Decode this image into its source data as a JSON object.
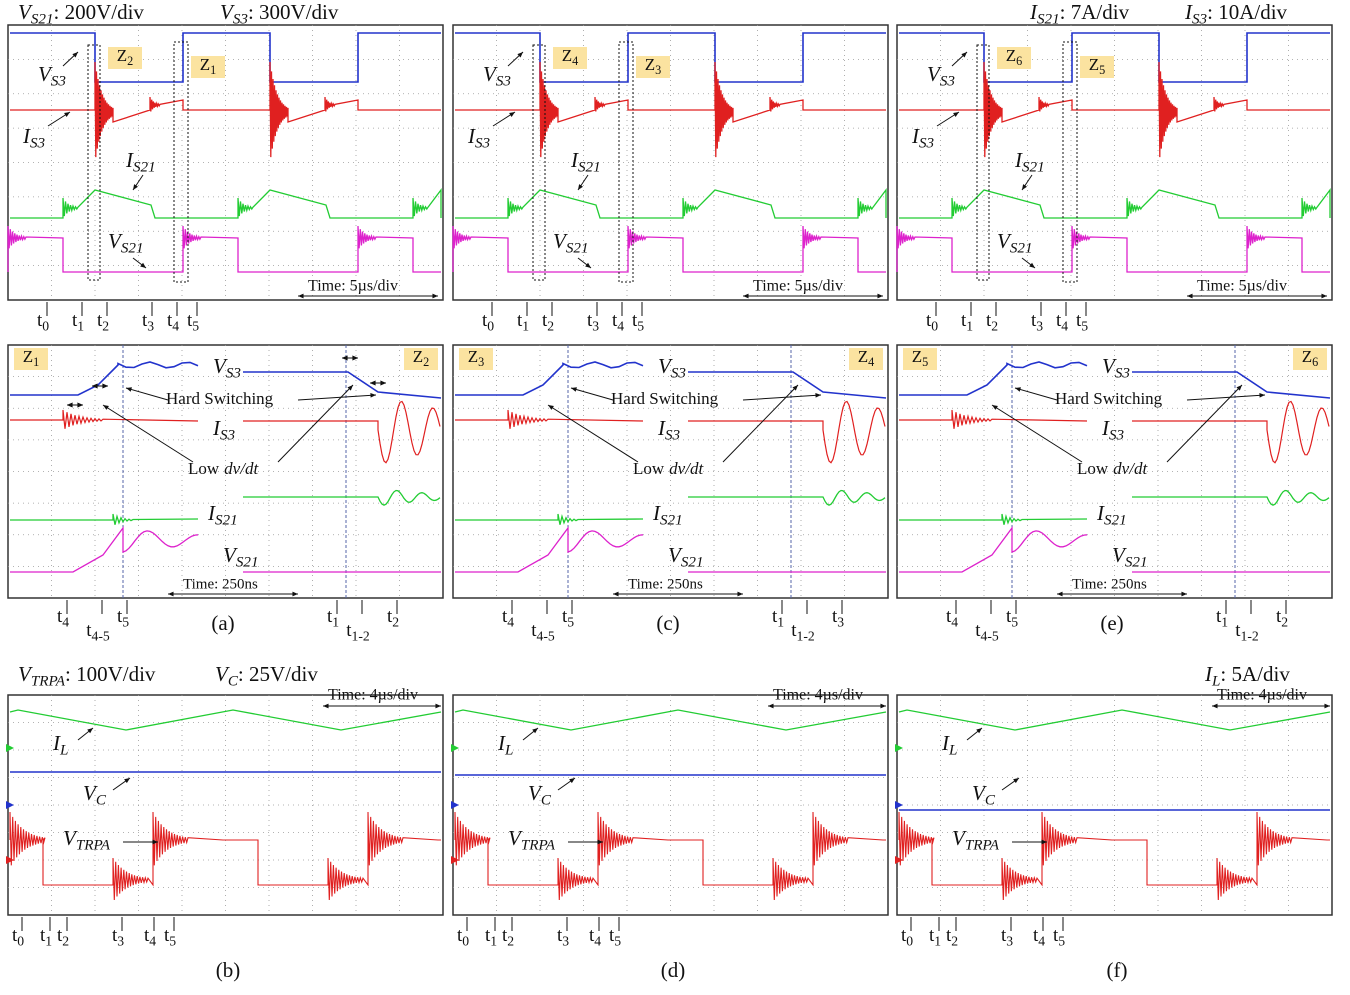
{
  "top_scales_left": [
    {
      "sym": "V",
      "sub": "S21",
      "text": ": 200V/div"
    },
    {
      "sym": "V",
      "sub": "S3",
      "text": ": 300V/div"
    }
  ],
  "top_scales_right": [
    {
      "sym": "I",
      "sub": "S21",
      "text": ": 7A/div"
    },
    {
      "sym": "I",
      "sub": "S3",
      "text": ": 10A/div"
    }
  ],
  "bottom_scales_left": [
    {
      "sym": "V",
      "sub": "TRPA",
      "text": ": 100V/div"
    },
    {
      "sym": "V",
      "sub": "C",
      "text": ": 25V/div"
    }
  ],
  "bottom_scales_right": [
    {
      "sym": "I",
      "sub": "L",
      "text": ": 5A/div"
    }
  ],
  "overview_panels": [
    {
      "zones": [
        {
          "sym": "Z",
          "sub": "2"
        },
        {
          "sym": "Z",
          "sub": "1"
        }
      ],
      "signals": [
        {
          "sym": "V",
          "sub": "S3"
        },
        {
          "sym": "I",
          "sub": "S3"
        },
        {
          "sym": "I",
          "sub": "S21"
        },
        {
          "sym": "V",
          "sub": "S21"
        }
      ],
      "time": "Time: 5µs/div",
      "markers": [
        {
          "sym": "t",
          "sub": "0"
        },
        {
          "sym": "t",
          "sub": "1"
        },
        {
          "sym": "t",
          "sub": "2"
        },
        {
          "sym": "t",
          "sub": "3"
        },
        {
          "sym": "t",
          "sub": "4"
        },
        {
          "sym": "t",
          "sub": "5"
        }
      ]
    },
    {
      "zones": [
        {
          "sym": "Z",
          "sub": "4"
        },
        {
          "sym": "Z",
          "sub": "3"
        }
      ],
      "signals": [
        {
          "sym": "V",
          "sub": "S3"
        },
        {
          "sym": "I",
          "sub": "S3"
        },
        {
          "sym": "I",
          "sub": "S21"
        },
        {
          "sym": "V",
          "sub": "S21"
        }
      ],
      "time": "Time: 5µs/div",
      "markers": [
        {
          "sym": "t",
          "sub": "0"
        },
        {
          "sym": "t",
          "sub": "1"
        },
        {
          "sym": "t",
          "sub": "2"
        },
        {
          "sym": "t",
          "sub": "3"
        },
        {
          "sym": "t",
          "sub": "4"
        },
        {
          "sym": "t",
          "sub": "5"
        }
      ]
    },
    {
      "zones": [
        {
          "sym": "Z",
          "sub": "6"
        },
        {
          "sym": "Z",
          "sub": "5"
        }
      ],
      "signals": [
        {
          "sym": "V",
          "sub": "S3"
        },
        {
          "sym": "I",
          "sub": "S3"
        },
        {
          "sym": "I",
          "sub": "S21"
        },
        {
          "sym": "V",
          "sub": "S21"
        }
      ],
      "time": "Time: 5µs/div",
      "markers": [
        {
          "sym": "t",
          "sub": "0"
        },
        {
          "sym": "t",
          "sub": "1"
        },
        {
          "sym": "t",
          "sub": "2"
        },
        {
          "sym": "t",
          "sub": "3"
        },
        {
          "sym": "t",
          "sub": "4"
        },
        {
          "sym": "t",
          "sub": "5"
        }
      ]
    }
  ],
  "zoom_panels": [
    {
      "zones": [
        {
          "sym": "Z",
          "sub": "1"
        },
        {
          "sym": "Z",
          "sub": "2"
        }
      ],
      "signals": [
        {
          "sym": "V",
          "sub": "S3"
        },
        {
          "sym": "I",
          "sub": "S3"
        },
        {
          "sym": "I",
          "sub": "S21"
        },
        {
          "sym": "V",
          "sub": "S21"
        }
      ],
      "hard_switching": "Hard Switching",
      "low_dvdt": {
        "text": "Low",
        "italic": "dv/dt"
      },
      "time": "Time: 250ns",
      "markers": [
        {
          "sym": "t",
          "sub": "4"
        },
        {
          "sym": "t",
          "sub": "4-5"
        },
        {
          "sym": "t",
          "sub": "5"
        },
        {
          "sym": "t",
          "sub": "1"
        },
        {
          "sym": "t",
          "sub": "1-2"
        },
        {
          "sym": "t",
          "sub": "2"
        }
      ],
      "caption": "(a)"
    },
    {
      "zones": [
        {
          "sym": "Z",
          "sub": "3"
        },
        {
          "sym": "Z",
          "sub": "4"
        }
      ],
      "signals": [
        {
          "sym": "V",
          "sub": "S3"
        },
        {
          "sym": "I",
          "sub": "S3"
        },
        {
          "sym": "I",
          "sub": "S21"
        },
        {
          "sym": "V",
          "sub": "S21"
        }
      ],
      "hard_switching": "Hard Switching",
      "low_dvdt": {
        "text": "Low",
        "italic": "dv/dt"
      },
      "time": "Time: 250ns",
      "markers": [
        {
          "sym": "t",
          "sub": "4"
        },
        {
          "sym": "t",
          "sub": "4-5"
        },
        {
          "sym": "t",
          "sub": "5"
        },
        {
          "sym": "t",
          "sub": "1"
        },
        {
          "sym": "t",
          "sub": "1-2"
        },
        {
          "sym": "t",
          "sub": "3"
        }
      ],
      "caption": "(c)"
    },
    {
      "zones": [
        {
          "sym": "Z",
          "sub": "5"
        },
        {
          "sym": "Z",
          "sub": "6"
        }
      ],
      "signals": [
        {
          "sym": "V",
          "sub": "S3"
        },
        {
          "sym": "I",
          "sub": "S3"
        },
        {
          "sym": "I",
          "sub": "S21"
        },
        {
          "sym": "V",
          "sub": "S21"
        }
      ],
      "hard_switching": "Hard Switching",
      "low_dvdt": {
        "text": "Low",
        "italic": "dv/dt"
      },
      "time": "Time: 250ns",
      "markers": [
        {
          "sym": "t",
          "sub": "4"
        },
        {
          "sym": "t",
          "sub": "4-5"
        },
        {
          "sym": "t",
          "sub": "5"
        },
        {
          "sym": "t",
          "sub": "1"
        },
        {
          "sym": "t",
          "sub": "1-2"
        },
        {
          "sym": "t",
          "sub": "2"
        }
      ],
      "caption": "(e)"
    }
  ],
  "steady_panels": [
    {
      "signals": [
        {
          "sym": "I",
          "sub": "L"
        },
        {
          "sym": "V",
          "sub": "C"
        },
        {
          "sym": "V",
          "sub": "TRPA"
        }
      ],
      "time": "Time: 4µs/div",
      "markers": [
        {
          "sym": "t",
          "sub": "0"
        },
        {
          "sym": "t",
          "sub": "1"
        },
        {
          "sym": "t",
          "sub": "2"
        },
        {
          "sym": "t",
          "sub": "3"
        },
        {
          "sym": "t",
          "sub": "4"
        },
        {
          "sym": "t",
          "sub": "5"
        }
      ],
      "caption": "(b)"
    },
    {
      "signals": [
        {
          "sym": "I",
          "sub": "L"
        },
        {
          "sym": "V",
          "sub": "C"
        },
        {
          "sym": "V",
          "sub": "TRPA"
        }
      ],
      "time": "Time: 4µs/div",
      "markers": [
        {
          "sym": "t",
          "sub": "0"
        },
        {
          "sym": "t",
          "sub": "1"
        },
        {
          "sym": "t",
          "sub": "2"
        },
        {
          "sym": "t",
          "sub": "3"
        },
        {
          "sym": "t",
          "sub": "4"
        },
        {
          "sym": "t",
          "sub": "5"
        }
      ],
      "caption": "(d)"
    },
    {
      "signals": [
        {
          "sym": "I",
          "sub": "L"
        },
        {
          "sym": "V",
          "sub": "C"
        },
        {
          "sym": "V",
          "sub": "TRPA"
        }
      ],
      "time": "Time: 4µs/div",
      "markers": [
        {
          "sym": "t",
          "sub": "0"
        },
        {
          "sym": "t",
          "sub": "1"
        },
        {
          "sym": "t",
          "sub": "2"
        },
        {
          "sym": "t",
          "sub": "3"
        },
        {
          "sym": "t",
          "sub": "4"
        },
        {
          "sym": "t",
          "sub": "5"
        }
      ],
      "caption": "(f)"
    }
  ]
}
